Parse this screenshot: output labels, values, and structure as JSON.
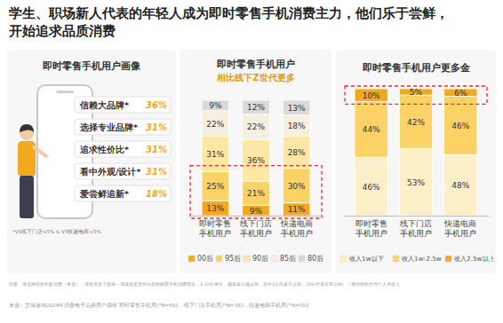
{
  "title": [
    "学生、职场新人代表的年轻人成为即时零售手机消费主力，他们乐于尝鲜，",
    "开始追求品质消费"
  ],
  "profile": {
    "title": "即时零售手机用户画像",
    "items": [
      {
        "label": "信赖大品牌*",
        "value": "36%"
      },
      {
        "label": "选择专业品牌*",
        "value": "31%"
      },
      {
        "label": "追求性价比*",
        "value": "31%"
      },
      {
        "label": "看中外观/设计*",
        "value": "31%"
      },
      {
        "label": "爱尝鲜追新*",
        "value": "18%"
      }
    ],
    "note": "*VS线下门店+5% & VS快递电商+5%"
  },
  "chart_data": [
    {
      "type": "bar",
      "title": "即时零售手机用户",
      "subtitle": "相比线下Z世代更多",
      "categories": [
        "即时零售手机用户",
        "线下门店手机用户",
        "快递电商手机用户"
      ],
      "stacked": true,
      "data_labels": true,
      "tick_labels": "x",
      "legend": "bottom",
      "ylim": [
        0,
        100
      ],
      "series": [
        {
          "name": "00后",
          "color": "#f4a81d",
          "values": [
            13,
            9,
            11
          ],
          "value_labels": [
            "13%",
            "9%",
            "11%"
          ]
        },
        {
          "name": "95后",
          "color": "#fbd266",
          "values": [
            25,
            21,
            30
          ],
          "value_labels": [
            "25%",
            "21%",
            "30%"
          ]
        },
        {
          "name": "90后",
          "color": "#fde7a5",
          "values": [
            31,
            36,
            28
          ],
          "value_labels": [
            "31%",
            "36%",
            "28%"
          ]
        },
        {
          "name": "85后",
          "color": "#f5efe0",
          "values": [
            22,
            22,
            18
          ],
          "value_labels": [
            "22%",
            "22%",
            "18%"
          ]
        },
        {
          "name": "80后",
          "color": "#dadada",
          "values": [
            9,
            12,
            13
          ],
          "value_labels": [
            "9%",
            "12%",
            "13%"
          ]
        }
      ]
    },
    {
      "type": "bar",
      "title": "即时零售手机用户更多金",
      "categories": [
        "即时零售手机用户",
        "线下门店手机用户",
        "快递电商手机用户"
      ],
      "stacked": true,
      "data_labels": true,
      "tick_labels": "x",
      "legend": "bottom",
      "ylim": [
        0,
        100
      ],
      "series": [
        {
          "name": "收入1w以下",
          "color": "#fdf0c8",
          "values": [
            46,
            53,
            48
          ],
          "value_labels": [
            "46%",
            "53%",
            "48%"
          ]
        },
        {
          "name": "收入1w-2.5w",
          "color": "#fbd266",
          "values": [
            44,
            42,
            46
          ],
          "value_labels": [
            "44%",
            "42%",
            "46%"
          ]
        },
        {
          "name": "收入2.5w以上",
          "color": "#f4a81d",
          "values": [
            10,
            5,
            6
          ],
          "value_labels": [
            "10%",
            "5%",
            "6%"
          ]
        }
      ]
    }
  ],
  "footer": {
    "question": "问题：请选择您的年龄范围（单选）；请您考虑下面每一项描述是否符合您的购买手机消费观念（1-10分评分，越高表示越认同，其中1分代表不认同，10分代表非常认同）；请问您的平均个人月收入",
    "source": "来源：艾瑞咨询2024年消费电子品类用户调研 即时零售手机用户N=691，线下门店手机用户N=383，快递电商手机用户N=502"
  }
}
